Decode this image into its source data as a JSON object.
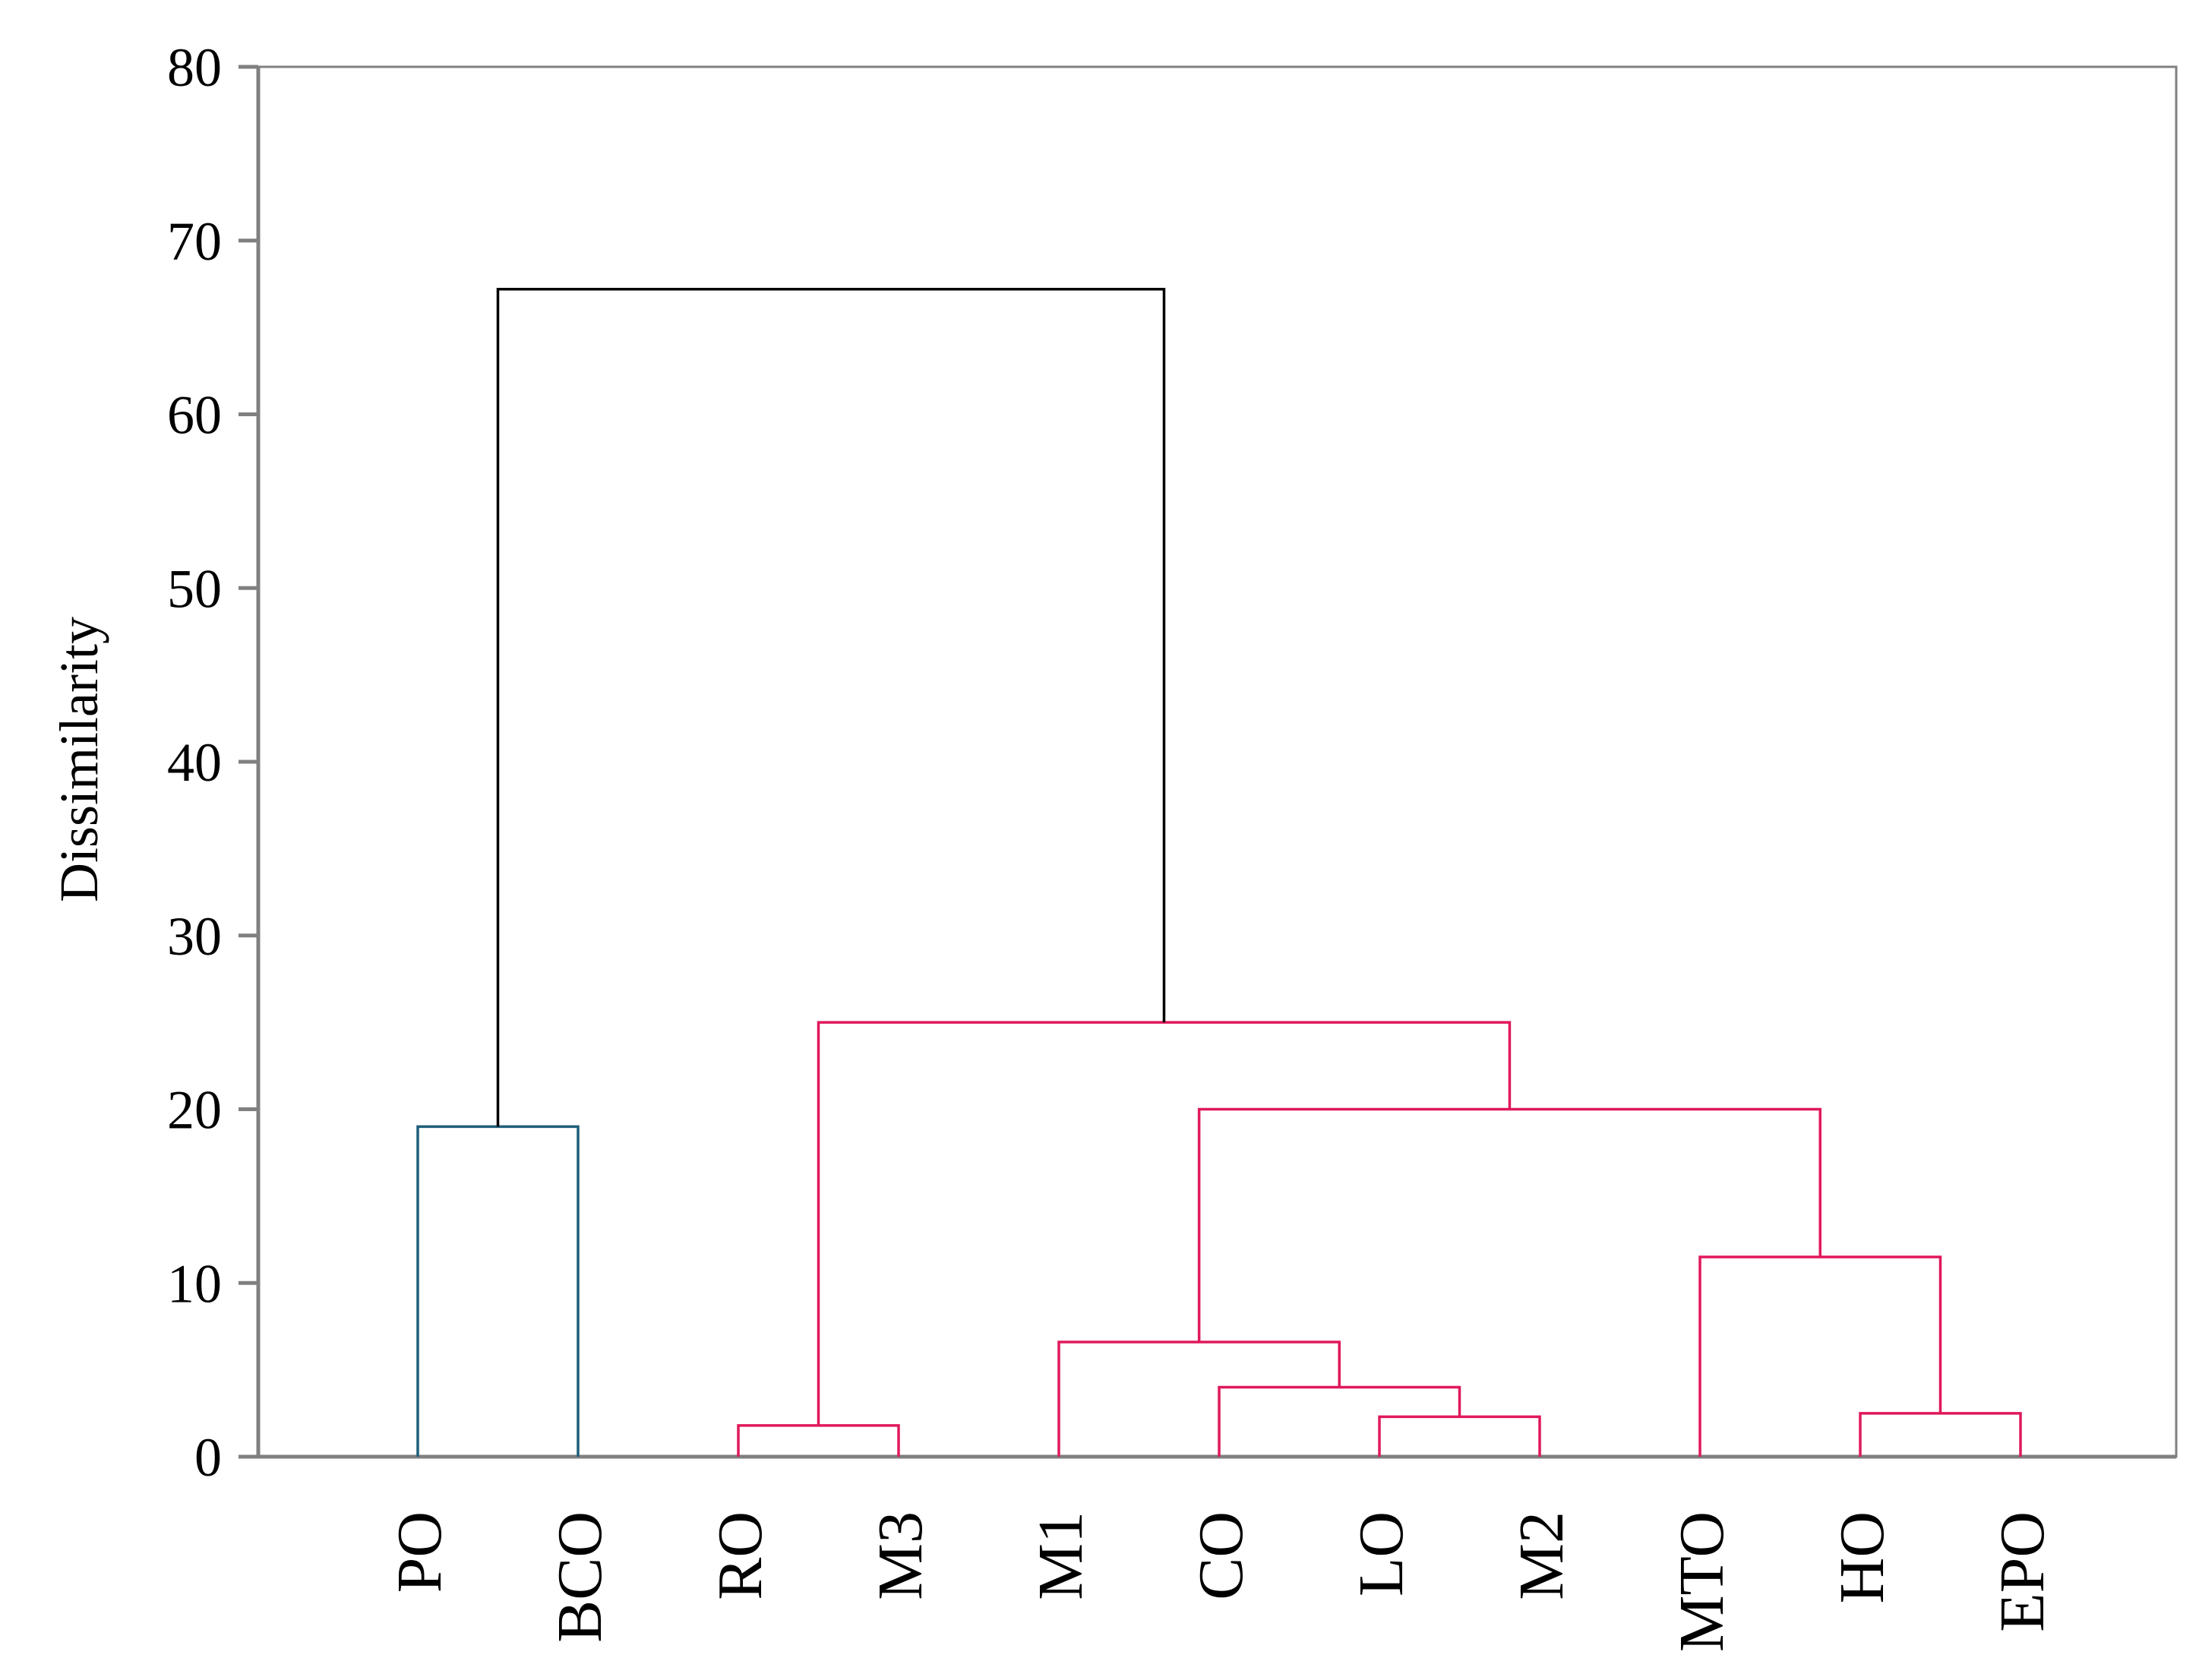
{
  "chart_data": {
    "type": "dendrogram",
    "title": "",
    "xlabel": "",
    "ylabel": "Dissimilarity",
    "ylim": [
      0,
      80
    ],
    "y_ticks": [
      "0",
      "10",
      "20",
      "30",
      "40",
      "50",
      "60",
      "70",
      "80"
    ],
    "leaves": [
      "PO",
      "BCO",
      "RO",
      "M3",
      "M1",
      "CO",
      "LO",
      "M2",
      "MTO",
      "HO",
      "EPO"
    ],
    "colors": {
      "cluster_blue": "#1f5f7a",
      "cluster_red": "#e0195a",
      "root": "#000000",
      "axis": "#808080"
    },
    "merges": [
      {
        "id": "c1",
        "children": [
          "M2",
          "LO"
        ],
        "height": 2.3,
        "color": "cluster_red"
      },
      {
        "id": "c2",
        "children": [
          "CO",
          "c1"
        ],
        "height": 4.0,
        "color": "cluster_red"
      },
      {
        "id": "c3",
        "children": [
          "M1",
          "c2"
        ],
        "height": 6.6,
        "color": "cluster_red"
      },
      {
        "id": "c4",
        "children": [
          "RO",
          "M3"
        ],
        "height": 1.8,
        "color": "cluster_red"
      },
      {
        "id": "c5",
        "children": [
          "HO",
          "EPO"
        ],
        "height": 2.5,
        "color": "cluster_red"
      },
      {
        "id": "c6",
        "children": [
          "MTO",
          "c5"
        ],
        "height": 11.5,
        "color": "cluster_red"
      },
      {
        "id": "c7",
        "children": [
          "c3",
          "c6"
        ],
        "height": 20.0,
        "color": "cluster_red"
      },
      {
        "id": "c8",
        "children": [
          "c4",
          "c7"
        ],
        "height": 25.0,
        "color": "cluster_red"
      },
      {
        "id": "c9",
        "children": [
          "PO",
          "BCO"
        ],
        "height": 19.0,
        "color": "cluster_blue"
      },
      {
        "id": "root",
        "children": [
          "c9",
          "c8"
        ],
        "height": 67.2,
        "color": "root"
      }
    ]
  }
}
